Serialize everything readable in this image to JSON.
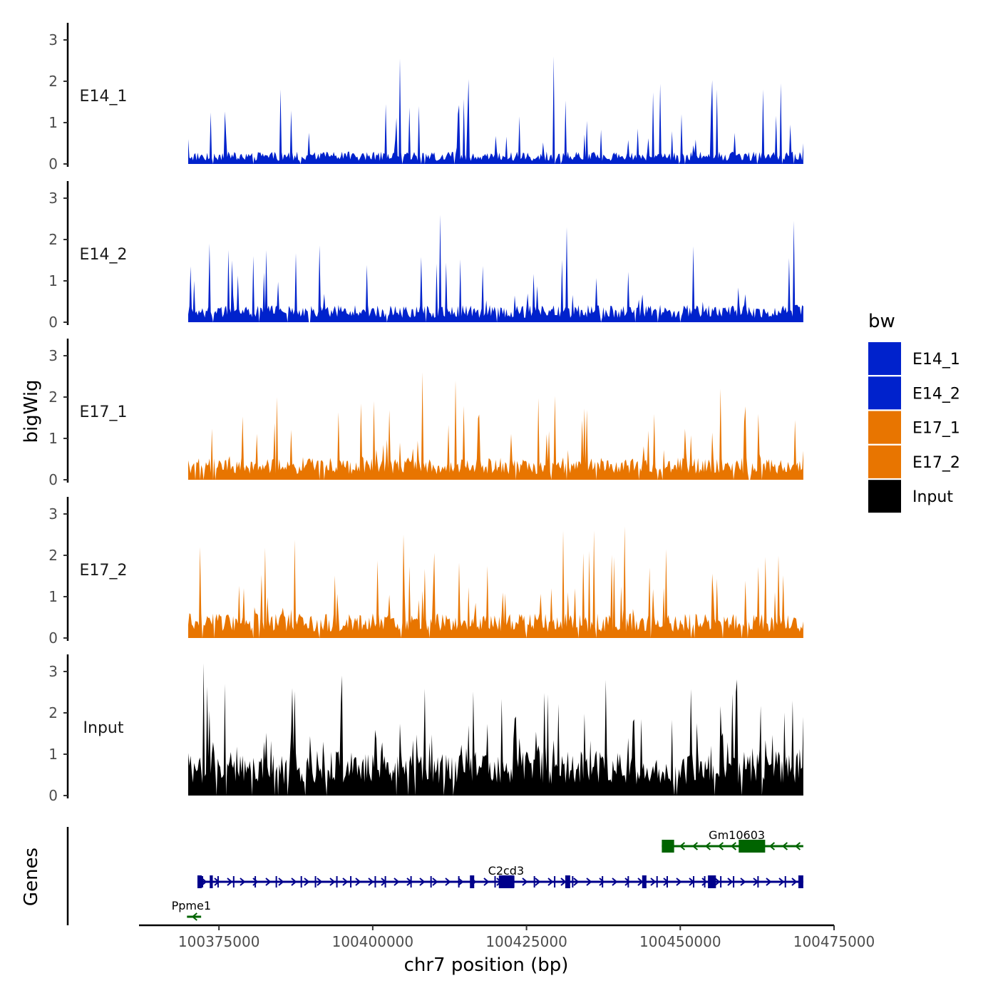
{
  "chart_data": {
    "type": "area",
    "ylabel": "bigWig",
    "xlabel": "chr7 position (bp)",
    "genes_label": "Genes",
    "xlim": [
      100362000,
      100475000
    ],
    "signal_range": [
      100370000,
      100470000
    ],
    "ylim": [
      0,
      3.3
    ],
    "yticks": [
      "0",
      "1",
      "2",
      "3"
    ],
    "xticks": [
      {
        "value": 100375000,
        "label": "100375000"
      },
      {
        "value": 100400000,
        "label": "100400000"
      },
      {
        "value": 100425000,
        "label": "100425000"
      },
      {
        "value": 100450000,
        "label": "100450000"
      },
      {
        "value": 100475000,
        "label": "100475000"
      }
    ],
    "tracks": [
      {
        "name": "E14_1",
        "color": "#0022CC",
        "base": 0.25,
        "spike_prob": 0.07,
        "spike_max": 1.9,
        "peaks": [
          {
            "x": 100404500,
            "y": 2.55
          },
          {
            "x": 100429500,
            "y": 2.6
          },
          {
            "x": 100385000,
            "y": 1.8
          },
          {
            "x": 100456000,
            "y": 1.8
          },
          {
            "x": 100463500,
            "y": 1.8
          },
          {
            "x": 100370000,
            "y": 0.6
          },
          {
            "x": 100470000,
            "y": 0.5
          }
        ]
      },
      {
        "name": "E14_2",
        "color": "#0022CC",
        "base": 0.35,
        "spike_prob": 0.09,
        "spike_max": 1.7,
        "peaks": [
          {
            "x": 100411000,
            "y": 2.6
          },
          {
            "x": 100468500,
            "y": 2.45
          },
          {
            "x": 100431500,
            "y": 2.3
          },
          {
            "x": 100373500,
            "y": 1.9
          },
          {
            "x": 100371000,
            "y": 1.0
          }
        ]
      },
      {
        "name": "E17_1",
        "color": "#E87500",
        "base": 0.45,
        "spike_prob": 0.1,
        "spike_max": 1.6,
        "peaks": [
          {
            "x": 100408000,
            "y": 2.6
          },
          {
            "x": 100413500,
            "y": 2.4
          },
          {
            "x": 100384500,
            "y": 2.0
          },
          {
            "x": 100456500,
            "y": 2.2
          },
          {
            "x": 100470000,
            "y": 0.7
          }
        ]
      },
      {
        "name": "E17_2",
        "color": "#E87500",
        "base": 0.5,
        "spike_prob": 0.12,
        "spike_max": 1.8,
        "peaks": [
          {
            "x": 100431000,
            "y": 2.6
          },
          {
            "x": 100436000,
            "y": 2.6
          },
          {
            "x": 100441000,
            "y": 2.7
          },
          {
            "x": 100405000,
            "y": 2.5
          },
          {
            "x": 100372000,
            "y": 2.2
          },
          {
            "x": 100470000,
            "y": 0.4
          }
        ]
      },
      {
        "name": "Input",
        "color": "#000000",
        "base": 0.9,
        "spike_prob": 0.14,
        "spike_max": 2.0,
        "peaks": [
          {
            "x": 100372500,
            "y": 3.2
          },
          {
            "x": 100395000,
            "y": 2.9
          },
          {
            "x": 100376000,
            "y": 2.7
          },
          {
            "x": 100387000,
            "y": 2.6
          },
          {
            "x": 100459000,
            "y": 2.5
          },
          {
            "x": 100470000,
            "y": 1.9
          }
        ]
      }
    ],
    "legend": {
      "title": "bw",
      "position": "right",
      "entries": [
        {
          "label": "E14_1",
          "color": "#0022CC"
        },
        {
          "label": "E14_2",
          "color": "#0022CC"
        },
        {
          "label": "E17_1",
          "color": "#E87500"
        },
        {
          "label": "E17_2",
          "color": "#E87500"
        },
        {
          "label": "Input",
          "color": "#000000"
        }
      ]
    },
    "genes": [
      {
        "name": "Gm10603",
        "start": 100447000,
        "end": 100470000,
        "strand": "-",
        "row": 0,
        "color": "#006400",
        "exons": [
          [
            100447000,
            100449000
          ],
          [
            100459500,
            100463800
          ]
        ]
      },
      {
        "name": "C2cd3",
        "start": 100371500,
        "end": 100470000,
        "strand": "+",
        "row": 1,
        "color": "#00008B",
        "exons": [
          [
            100371500,
            100372200
          ],
          [
            100373500,
            100374000
          ],
          [
            100415800,
            100416500
          ],
          [
            100420500,
            100423000
          ],
          [
            100431300,
            100432100
          ],
          [
            100443800,
            100444500
          ],
          [
            100454500,
            100455800
          ],
          [
            100469200,
            100470000
          ]
        ]
      },
      {
        "name": "Ppme1",
        "start": 100369800,
        "end": 100372100,
        "strand": "-",
        "row": 2,
        "color": "#006400",
        "exons": []
      }
    ]
  }
}
